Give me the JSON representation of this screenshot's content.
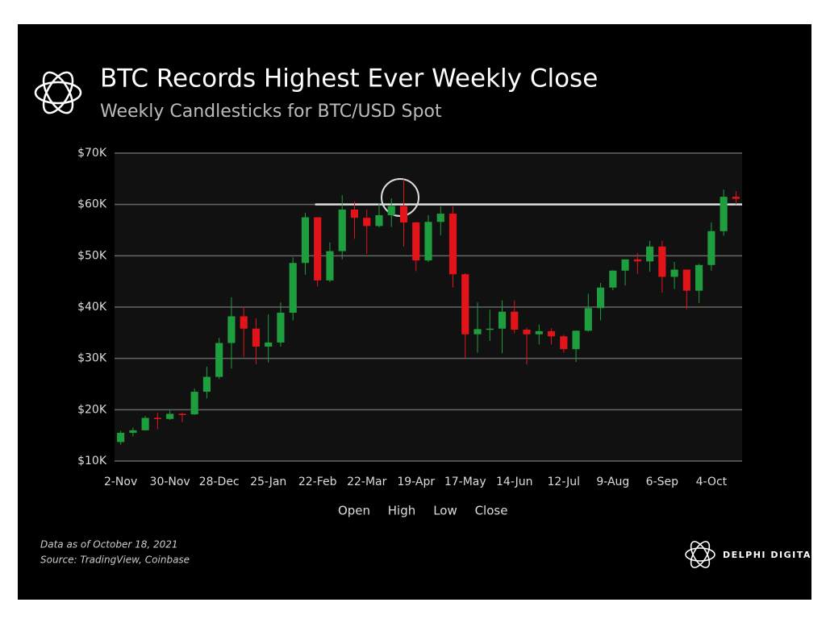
{
  "chart_data": {
    "type": "candlestick",
    "title": "BTC Records Highest Ever Weekly Close",
    "subtitle": "Weekly Candlesticks for BTC/USD Spot",
    "categories": [
      "2-Nov",
      null,
      null,
      null,
      "30-Nov",
      null,
      null,
      null,
      "28-Dec",
      null,
      null,
      null,
      "25-Jan",
      null,
      null,
      null,
      "22-Feb",
      null,
      null,
      null,
      "22-Mar",
      null,
      null,
      null,
      "19-Apr",
      null,
      null,
      null,
      "17-May",
      null,
      null,
      null,
      "14-Jun",
      null,
      null,
      null,
      "12-Jul",
      null,
      null,
      null,
      "9-Aug",
      null,
      null,
      null,
      "6-Sep",
      null,
      null,
      null,
      "4-Oct",
      null,
      null
    ],
    "open": [
      13.7,
      15.5,
      16.0,
      18.4,
      18.2,
      19.2,
      19.1,
      23.5,
      26.4,
      33.0,
      38.2,
      35.8,
      32.3,
      33.1,
      38.9,
      48.6,
      57.5,
      45.2,
      50.9,
      59.0,
      57.4,
      55.8,
      57.9,
      59.7,
      56.5,
      49.1,
      56.6,
      58.2,
      46.4,
      34.7,
      35.7,
      35.8,
      39.1,
      35.6,
      34.7,
      35.3,
      34.3,
      31.8,
      35.4,
      39.8,
      43.8,
      47.1,
      49.3,
      48.9,
      51.8,
      45.9,
      47.3,
      43.2,
      48.2,
      54.8,
      61.5
    ],
    "high": [
      15.9,
      16.5,
      18.8,
      19.4,
      19.9,
      19.4,
      24.1,
      28.4,
      34.0,
      41.9,
      40.0,
      37.8,
      38.6,
      40.9,
      49.7,
      58.4,
      57.5,
      52.6,
      61.8,
      60.6,
      59.0,
      60.2,
      61.2,
      64.9,
      56.6,
      57.9,
      59.6,
      59.6,
      46.6,
      40.9,
      39.5,
      41.3,
      41.3,
      36.0,
      36.6,
      35.9,
      34.6,
      35.4,
      42.6,
      44.7,
      47.2,
      49.2,
      50.5,
      52.9,
      52.9,
      48.8,
      47.3,
      48.4,
      56.5,
      62.9,
      62.6
    ],
    "low": [
      13.2,
      14.8,
      15.9,
      16.2,
      18.0,
      17.6,
      19.0,
      22.2,
      26.0,
      28.0,
      30.3,
      28.9,
      29.2,
      32.3,
      37.4,
      46.3,
      44.0,
      44.9,
      49.3,
      53.3,
      50.4,
      55.5,
      55.6,
      51.8,
      47.0,
      48.8,
      54.0,
      43.8,
      30.0,
      31.1,
      33.4,
      31.0,
      34.9,
      28.8,
      32.7,
      32.7,
      31.1,
      29.3,
      35.2,
      37.4,
      43.3,
      44.2,
      46.4,
      46.9,
      42.8,
      43.5,
      39.6,
      40.8,
      47.1,
      53.9,
      60.0
    ],
    "close": [
      15.5,
      16.0,
      18.4,
      18.2,
      19.2,
      19.1,
      23.5,
      26.4,
      33.0,
      38.2,
      35.8,
      32.3,
      33.1,
      38.9,
      48.6,
      57.5,
      45.2,
      50.9,
      59.0,
      57.4,
      55.8,
      57.9,
      59.7,
      56.5,
      49.1,
      56.6,
      58.2,
      46.4,
      34.7,
      35.7,
      35.8,
      39.1,
      35.6,
      34.7,
      35.3,
      34.3,
      31.8,
      35.4,
      39.8,
      43.8,
      47.1,
      49.3,
      48.9,
      51.8,
      45.9,
      47.3,
      43.2,
      48.2,
      54.8,
      61.5,
      61.1
    ],
    "up_color": "#1e9e3e",
    "down_color": "#e3131a",
    "reference_line": 60,
    "ylim": [
      10,
      70
    ],
    "yticks": [
      {
        "value": 10,
        "label": "$10K"
      },
      {
        "value": 20,
        "label": "$20K"
      },
      {
        "value": 30,
        "label": "$30K"
      },
      {
        "value": 40,
        "label": "$40K"
      },
      {
        "value": 50,
        "label": "$50K"
      },
      {
        "value": 60,
        "label": "$60K"
      },
      {
        "value": 70,
        "label": "$70K"
      }
    ],
    "grid": true,
    "legend_labels": [
      "Open",
      "High",
      "Low",
      "Close"
    ]
  },
  "footer": {
    "note": "Data as of October 18, 2021",
    "source": "Source: TradingView, Coinbase",
    "brand": "DELPHI DIGITAL"
  }
}
